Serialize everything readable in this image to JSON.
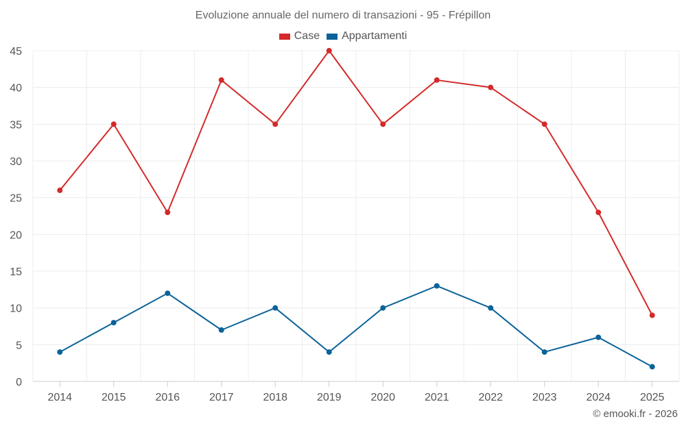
{
  "chart_data": {
    "type": "line",
    "title": "Evoluzione annuale del numero di transazioni - 95 - Frépillon",
    "categories": [
      "2014",
      "2015",
      "2016",
      "2017",
      "2018",
      "2019",
      "2020",
      "2021",
      "2022",
      "2023",
      "2024",
      "2025"
    ],
    "series": [
      {
        "name": "Case",
        "color": "#d42a2a",
        "values": [
          26,
          35,
          23,
          41,
          35,
          45,
          35,
          41,
          40,
          35,
          23,
          9
        ]
      },
      {
        "name": "Appartamenti",
        "color": "#0a6399",
        "values": [
          4,
          8,
          12,
          7,
          10,
          4,
          10,
          13,
          10,
          4,
          6,
          2
        ]
      }
    ],
    "ylim": [
      0,
      45
    ],
    "yticks": [
      0,
      5,
      10,
      15,
      20,
      25,
      30,
      35,
      40,
      45
    ],
    "xlabel": "",
    "ylabel": "",
    "grid": true,
    "legend": "top-center"
  },
  "footer": {
    "copyright": "© emooki.fr - 2026"
  }
}
